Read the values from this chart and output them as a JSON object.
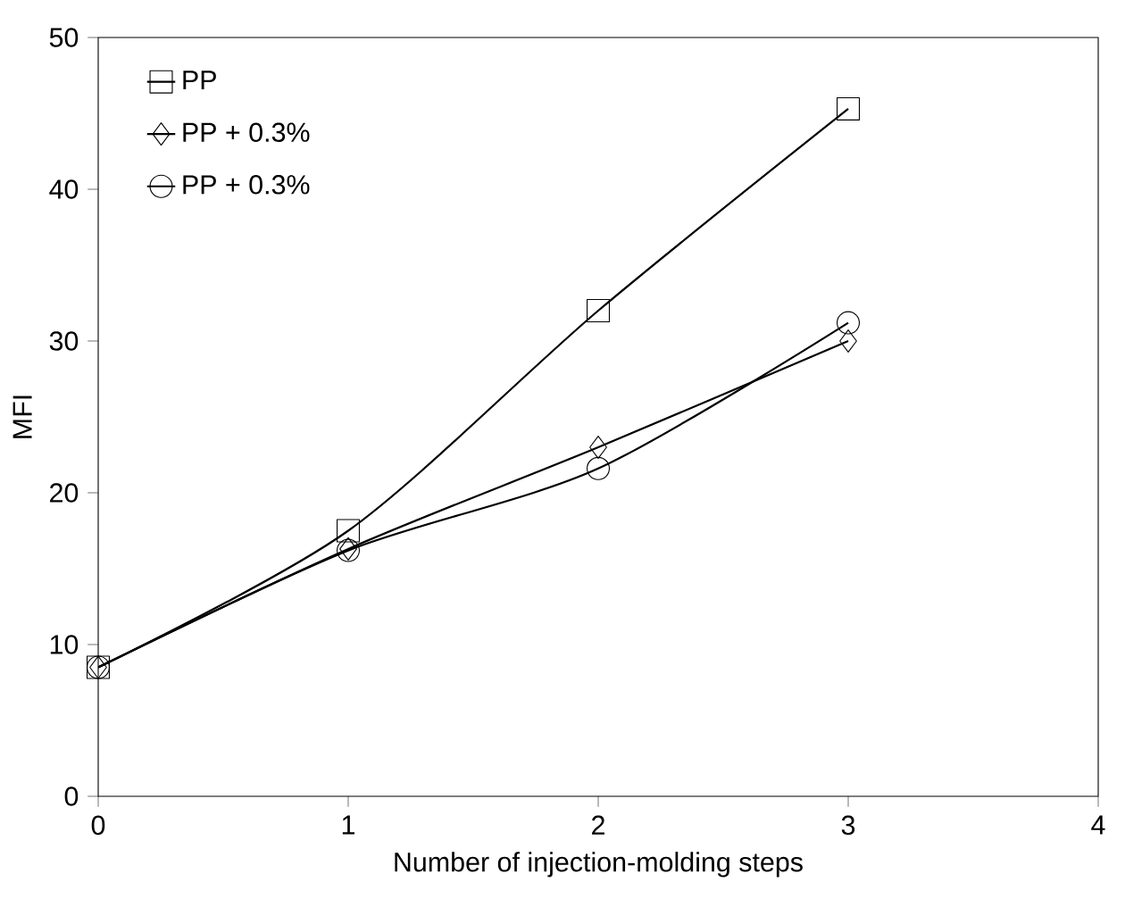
{
  "chart_data": {
    "type": "line",
    "xlabel": "Number of injection-molding steps",
    "ylabel": "MFI",
    "x": [
      0,
      1,
      2,
      3
    ],
    "series": [
      {
        "name": "PP",
        "color": "#000000",
        "marker": "square",
        "values": [
          8.5,
          17.5,
          32,
          45.3
        ]
      },
      {
        "name": "PP + 0.3%",
        "color": "#000000",
        "marker": "diamond",
        "values": [
          8.5,
          16.3,
          23,
          30
        ]
      },
      {
        "name": "PP + 0.3%",
        "color": "#000000",
        "marker": "circle",
        "values": [
          8.5,
          16.2,
          21.6,
          31.2
        ]
      }
    ],
    "xlim": [
      0,
      4
    ],
    "xticks": [
      0,
      1,
      2,
      3,
      4
    ],
    "ylim": [
      0,
      50
    ],
    "yticks": [
      0,
      10,
      20,
      30,
      40,
      50
    ],
    "grid": false,
    "legend": "top left",
    "line_style": "solid"
  }
}
